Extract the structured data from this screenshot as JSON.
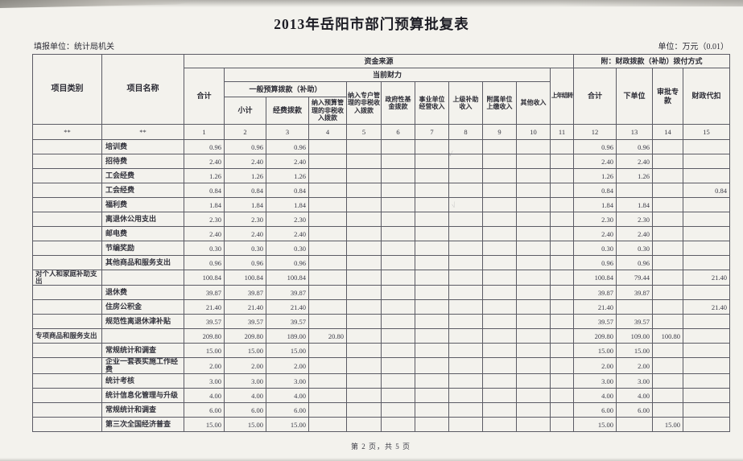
{
  "page": {
    "title": "2013年岳阳市部门预算批复表",
    "report_unit": "填报单位：统计局机关",
    "unit_note": "单位：万元（0.01）",
    "footer": "第 2 页，共 5 页"
  },
  "table": {
    "header": {
      "col_category": "项目类别",
      "col_name": "项目名称",
      "group_funding": "资金来源",
      "group_allocation": "附：财政拨款（补助）拨付方式",
      "col_total": "合计",
      "group_current": "当前财力",
      "col_carryover": "上年结转",
      "alloc_total": "合计",
      "alloc_to_unit": "下单位",
      "alloc_special": "审批专款",
      "alloc_withhold": "财政代扣",
      "group_general_budget": "一般预算拨款（补助）",
      "col_subtotal": "小计",
      "col_funds": "经费拨款",
      "col_nontax_budget": "纳入预算管理的非税收入拨款",
      "col_nontax_account": "纳入专户管理的非税收入拨款",
      "col_gov_fund": "政府性基金拨款",
      "col_business_income": "事业单位经营收入",
      "col_superior_subsidy": "上级补助收入",
      "col_subordinate_remit": "附属单位上缴收入",
      "col_other_income": "其他收入",
      "index_row": [
        "**",
        "**",
        "1",
        "2",
        "3",
        "4",
        "5",
        "6",
        "7",
        "8",
        "9",
        "10",
        "11",
        "12",
        "13",
        "14",
        "15"
      ]
    },
    "rows": [
      [
        "",
        "培训费",
        "0.96",
        "0.96",
        "0.96",
        "",
        "",
        "",
        "",
        "",
        "",
        "",
        "",
        "0.96",
        "0.96",
        "",
        ""
      ],
      [
        "",
        "招待费",
        "2.40",
        "2.40",
        "2.40",
        "",
        "",
        "",
        "",
        "",
        "",
        "",
        "",
        "2.40",
        "2.40",
        "",
        ""
      ],
      [
        "",
        "工会经费",
        "1.26",
        "1.26",
        "1.26",
        "",
        "",
        "",
        "",
        "",
        "",
        "",
        "",
        "1.26",
        "1.26",
        "",
        ""
      ],
      [
        "",
        "工会经费",
        "0.84",
        "0.84",
        "0.84",
        "",
        "",
        "",
        "",
        "",
        "",
        "",
        "",
        "0.84",
        "",
        "",
        "0.84"
      ],
      [
        "",
        "福利费",
        "1.84",
        "1.84",
        "1.84",
        "",
        "",
        "",
        "",
        "",
        "",
        "",
        "",
        "1.84",
        "1.84",
        "",
        ""
      ],
      [
        "",
        "离退休公用支出",
        "2.30",
        "2.30",
        "2.30",
        "",
        "",
        "",
        "",
        "",
        "",
        "",
        "",
        "2.30",
        "2.30",
        "",
        ""
      ],
      [
        "",
        "邮电费",
        "2.40",
        "2.40",
        "2.40",
        "",
        "",
        "",
        "",
        "",
        "",
        "",
        "",
        "2.40",
        "2.40",
        "",
        ""
      ],
      [
        "",
        "节编奖励",
        "0.30",
        "0.30",
        "0.30",
        "",
        "",
        "",
        "",
        "",
        "",
        "",
        "",
        "0.30",
        "0.30",
        "",
        ""
      ],
      [
        "",
        "其他商品和服务支出",
        "0.96",
        "0.96",
        "0.96",
        "",
        "",
        "",
        "",
        "",
        "",
        "",
        "",
        "0.96",
        "0.96",
        "",
        ""
      ],
      [
        "对个人和家庭补助支出",
        "",
        "100.84",
        "100.84",
        "100.84",
        "",
        "",
        "",
        "",
        "",
        "",
        "",
        "",
        "100.84",
        "79.44",
        "",
        "21.40"
      ],
      [
        "",
        "退休费",
        "39.87",
        "39.87",
        "39.87",
        "",
        "",
        "",
        "",
        "",
        "",
        "",
        "",
        "39.87",
        "39.87",
        "",
        ""
      ],
      [
        "",
        "住房公积金",
        "21.40",
        "21.40",
        "21.40",
        "",
        "",
        "",
        "",
        "",
        "",
        "",
        "",
        "21.40",
        "",
        "",
        "21.40"
      ],
      [
        "",
        "规范性离退休津补贴",
        "39.57",
        "39.57",
        "39.57",
        "",
        "",
        "",
        "",
        "",
        "",
        "",
        "",
        "39.57",
        "39.57",
        "",
        ""
      ],
      [
        "专项商品和服务支出",
        "",
        "209.80",
        "209.80",
        "189.00",
        "20.80",
        "",
        "",
        "",
        "",
        "",
        "",
        "",
        "209.80",
        "109.00",
        "100.80",
        ""
      ],
      [
        "",
        "常规统计和调查",
        "15.00",
        "15.00",
        "15.00",
        "",
        "",
        "",
        "",
        "",
        "",
        "",
        "",
        "15.00",
        "15.00",
        "",
        ""
      ],
      [
        "",
        "企业一套表实施工作经费",
        "2.00",
        "2.00",
        "2.00",
        "",
        "",
        "",
        "",
        "",
        "",
        "",
        "",
        "2.00",
        "2.00",
        "",
        ""
      ],
      [
        "",
        "统计考核",
        "3.00",
        "3.00",
        "3.00",
        "",
        "",
        "",
        "",
        "",
        "",
        "",
        "",
        "3.00",
        "3.00",
        "",
        ""
      ],
      [
        "",
        "统计信息化管理与升级",
        "4.00",
        "4.00",
        "4.00",
        "",
        "",
        "",
        "",
        "",
        "",
        "",
        "",
        "4.00",
        "4.00",
        "",
        ""
      ],
      [
        "",
        "常规统计和调查",
        "6.00",
        "6.00",
        "6.00",
        "",
        "",
        "",
        "",
        "",
        "",
        "",
        "",
        "6.00",
        "6.00",
        "",
        ""
      ],
      [
        "",
        "第三次全国经济普查",
        "15.00",
        "15.00",
        "15.00",
        "",
        "",
        "",
        "",
        "",
        "",
        "",
        "",
        "15.00",
        "",
        "15.00",
        ""
      ]
    ]
  },
  "marks": {
    "tick_a": "√",
    "tick_b": "√"
  }
}
